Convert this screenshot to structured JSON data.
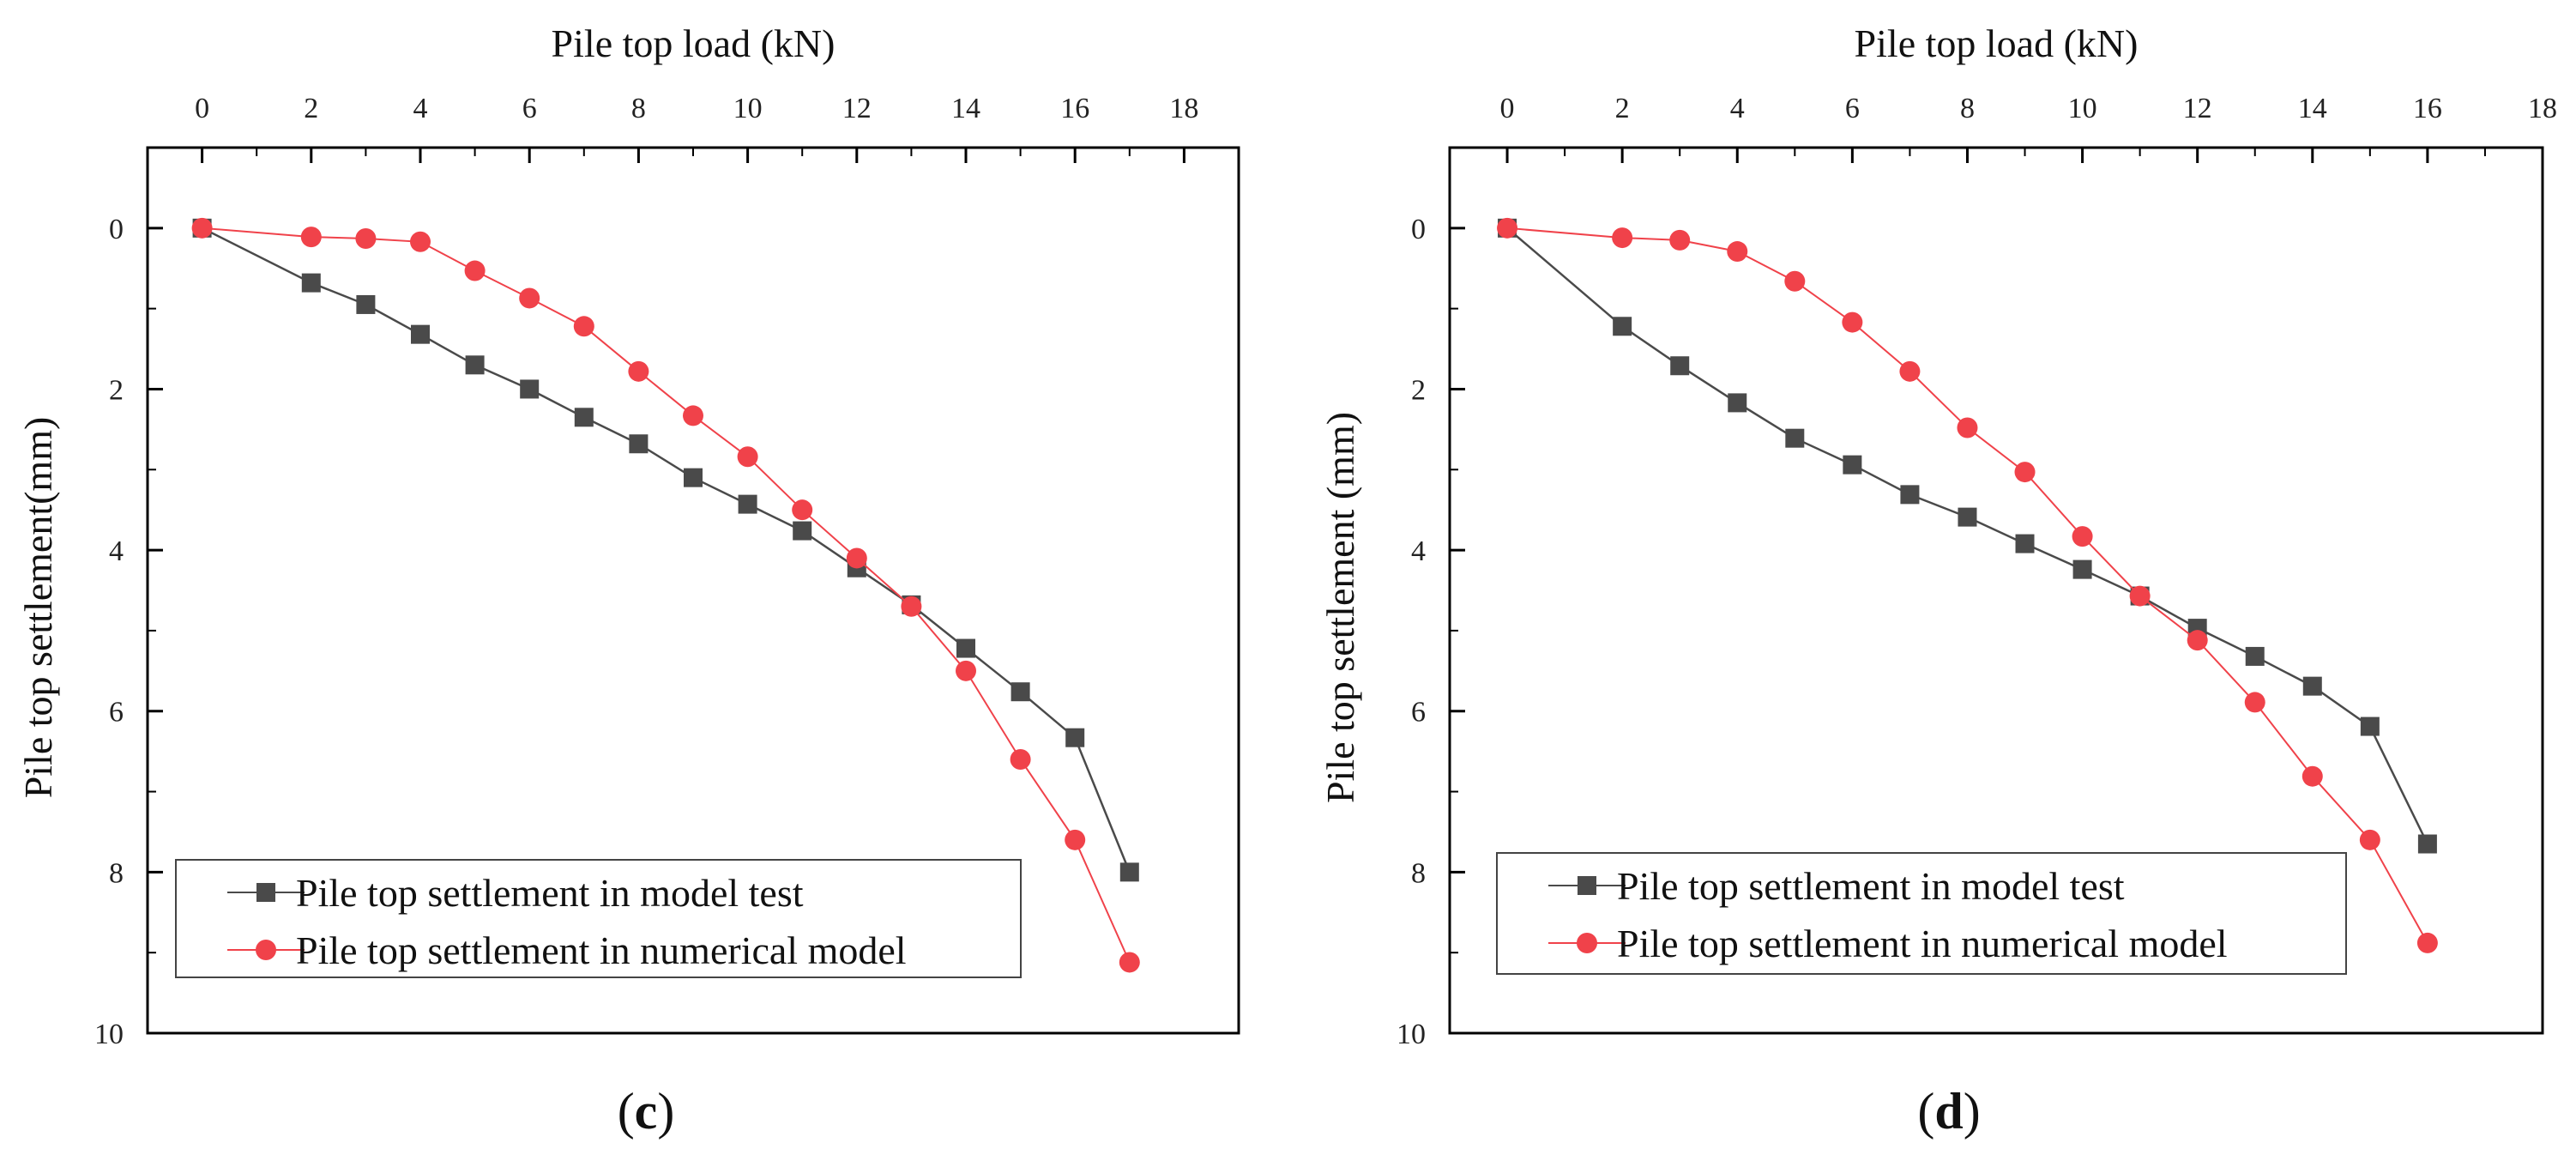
{
  "chart_data": [
    {
      "type": "line",
      "panel_label_open": "(",
      "panel_label_letter": "c",
      "panel_label_close": ")",
      "xlabel": "Pile top load (kN)",
      "ylabel": "Pile top settlement(mm)",
      "xlim": [
        -1,
        19
      ],
      "ylim": [
        10,
        -1
      ],
      "xticks": [
        0,
        2,
        4,
        6,
        8,
        10,
        12,
        14,
        16,
        18
      ],
      "yticks": [
        0,
        2,
        4,
        6,
        8,
        10
      ],
      "x_axis_position": "top",
      "y_axis_inverted": true,
      "grid": false,
      "legend_position": "bottom-left",
      "series": [
        {
          "name": "Pile top settlement in model test",
          "color": "#4a4a4a",
          "marker": "square",
          "x": [
            0,
            2,
            3,
            4,
            5,
            6,
            7,
            8,
            9,
            10,
            11,
            12,
            13,
            14,
            15,
            16,
            17
          ],
          "y": [
            0,
            0.68,
            0.95,
            1.32,
            1.7,
            2.0,
            2.35,
            2.68,
            3.1,
            3.43,
            3.76,
            4.22,
            4.68,
            5.22,
            5.76,
            6.33,
            8.0
          ]
        },
        {
          "name": "Pile top settlement in  numerical model",
          "color": "#f0424a",
          "marker": "circle",
          "x": [
            0,
            2,
            3,
            4,
            5,
            6,
            7,
            8,
            9,
            10,
            11,
            12,
            13,
            14,
            15,
            16,
            17
          ],
          "y": [
            0,
            0.11,
            0.13,
            0.17,
            0.53,
            0.87,
            1.22,
            1.78,
            2.33,
            2.84,
            3.5,
            4.1,
            4.7,
            5.5,
            6.6,
            7.6,
            9.12
          ]
        }
      ]
    },
    {
      "type": "line",
      "panel_label_open": "(",
      "panel_label_letter": "d",
      "panel_label_close": ")",
      "xlabel": "Pile top load (kN)",
      "ylabel": "Pile top settlement (mm)",
      "xlim": [
        -1,
        18
      ],
      "ylim": [
        10,
        -1
      ],
      "xticks": [
        0,
        2,
        4,
        6,
        8,
        10,
        12,
        14,
        16,
        18
      ],
      "yticks": [
        0,
        2,
        4,
        6,
        8,
        10
      ],
      "x_axis_position": "top",
      "y_axis_inverted": true,
      "grid": false,
      "legend_position": "bottom-left",
      "series": [
        {
          "name": "Pile top settlement in model test",
          "color": "#4a4a4a",
          "marker": "square",
          "x": [
            0,
            2,
            3,
            4,
            5,
            6,
            7,
            8,
            9,
            10,
            11,
            12,
            13,
            14,
            15,
            16
          ],
          "y": [
            0,
            1.22,
            1.71,
            2.17,
            2.61,
            2.94,
            3.31,
            3.59,
            3.92,
            4.24,
            4.57,
            4.97,
            5.32,
            5.69,
            6.19,
            7.65
          ]
        },
        {
          "name": "Pile top settlement in  numerical model",
          "color": "#f0424a",
          "marker": "circle",
          "x": [
            0,
            2,
            3,
            4,
            5,
            6,
            7,
            8,
            9,
            10,
            11,
            12,
            13,
            14,
            15,
            16
          ],
          "y": [
            0,
            0.12,
            0.15,
            0.29,
            0.66,
            1.17,
            1.78,
            2.48,
            3.03,
            3.83,
            4.57,
            5.12,
            5.89,
            6.81,
            7.6,
            8.88
          ]
        }
      ]
    }
  ]
}
